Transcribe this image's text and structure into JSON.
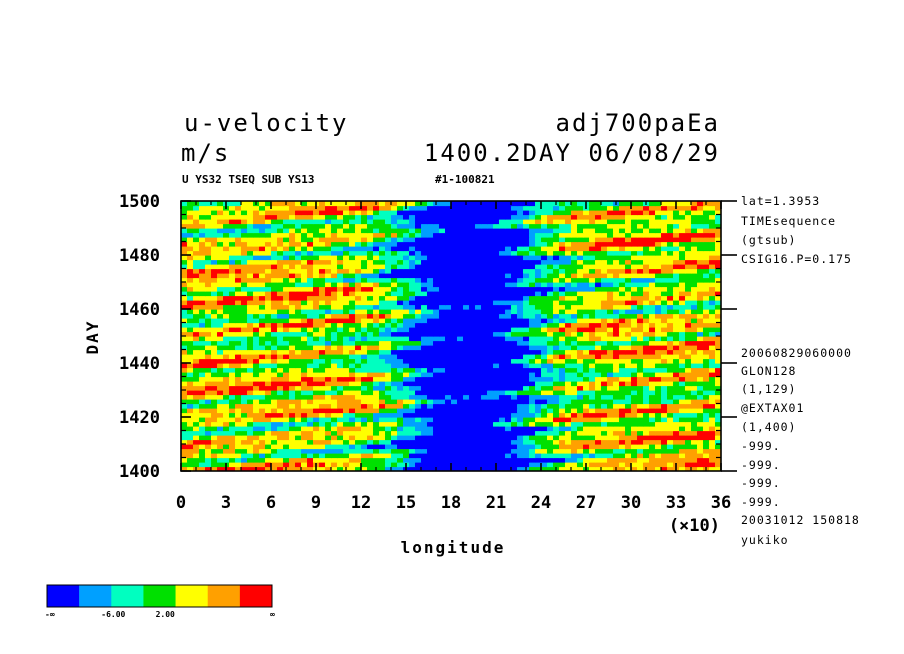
{
  "header": {
    "title_left": "u-velocity",
    "units": "m/s",
    "title_right": "adj700paEa",
    "time_label": "1400.2DAY 06/08/29",
    "subtitle_left": "U YS32 TSEQ SUB YS13",
    "subtitle_mid": "#1-100821"
  },
  "side_info": [
    "lat=1.3953",
    "TIMEsequence",
    "(gtsub)",
    "CSIG16.P=0.175",
    "20060829060000",
    "GLON128",
    "(1,129)",
    "@EXTAX01",
    "(1,400)",
    "-999.",
    "-999.",
    "-999.",
    "-999.",
    "20031012 150818",
    "yukiko"
  ],
  "colorbar": {
    "colors": [
      "#0000ff",
      "#00a0ff",
      "#00ffc0",
      "#00e000",
      "#ffff00",
      "#ffa000",
      "#ff0000"
    ],
    "labels": [
      "-∞",
      "-6.00",
      "2.00",
      "∞"
    ]
  },
  "chart_data": {
    "type": "heatmap",
    "title": "u-velocity",
    "xlabel": "longitude",
    "ylabel": "DAY",
    "x_multiplier_label": "(×10)",
    "xlim": [
      0,
      36
    ],
    "ylim": [
      1400,
      1500
    ],
    "x_ticks": [
      "0",
      "3",
      "6",
      "9",
      "12",
      "15",
      "18",
      "21",
      "24",
      "27",
      "30",
      "33",
      "36"
    ],
    "y_ticks": [
      "1400",
      "1420",
      "1440",
      "1460",
      "1480",
      "1500"
    ],
    "description_of_field": "Zonal wind time-longitude section; negative (blue) band centered near longitude 18-22 (x10 deg), positive (red) streaks tilted eastward elsewhere",
    "grid": false
  }
}
